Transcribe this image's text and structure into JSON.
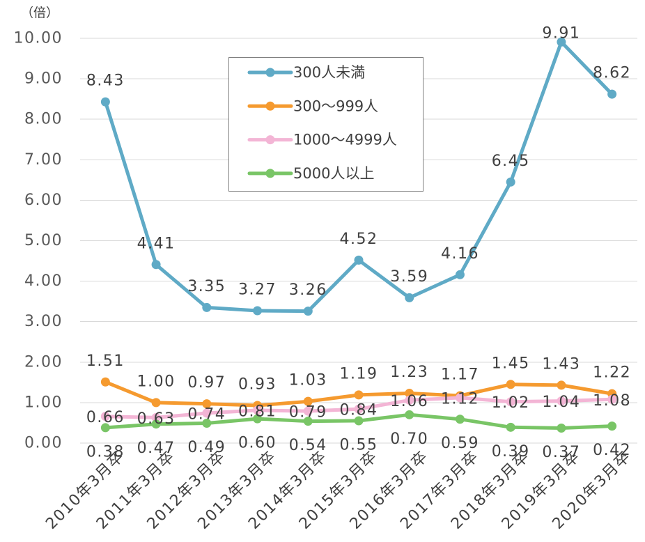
{
  "chart_data": {
    "type": "line",
    "ylabel": "（倍）",
    "ylim": [
      0,
      10
    ],
    "yticks": [
      0,
      1,
      2,
      3,
      4,
      5,
      6,
      7,
      8,
      9,
      10
    ],
    "ytick_labels": [
      "0.00",
      "1.00",
      "2.00",
      "3.00",
      "4.00",
      "5.00",
      "6.00",
      "7.00",
      "8.00",
      "9.00",
      "10.00"
    ],
    "categories": [
      "2010年3月卒",
      "2011年3月卒",
      "2012年3月卒",
      "2013年3月卒",
      "2014年3月卒",
      "2015年3月卒",
      "2016年3月卒",
      "2017年3月卒",
      "2018年3月卒",
      "2019年3月卒",
      "2020年3月卒"
    ],
    "grid": true,
    "data_labels": true,
    "legend_position": "inside-top",
    "series": [
      {
        "name": "300人未満",
        "color": "#5FAAC6",
        "values": [
          8.43,
          4.41,
          3.35,
          3.27,
          3.26,
          4.52,
          3.59,
          4.16,
          6.45,
          9.91,
          8.62
        ]
      },
      {
        "name": "300～999人",
        "color": "#F59A2F",
        "values": [
          1.51,
          1.0,
          0.97,
          0.93,
          1.03,
          1.19,
          1.23,
          1.17,
          1.45,
          1.43,
          1.22
        ]
      },
      {
        "name": "1000～4999人",
        "color": "#F3B5D5",
        "values": [
          0.66,
          0.63,
          0.74,
          0.81,
          0.79,
          0.84,
          1.06,
          1.12,
          1.02,
          1.04,
          1.08
        ]
      },
      {
        "name": "5000人以上",
        "color": "#79C566",
        "values": [
          0.38,
          0.47,
          0.49,
          0.6,
          0.54,
          0.55,
          0.7,
          0.59,
          0.39,
          0.37,
          0.42
        ]
      }
    ]
  }
}
